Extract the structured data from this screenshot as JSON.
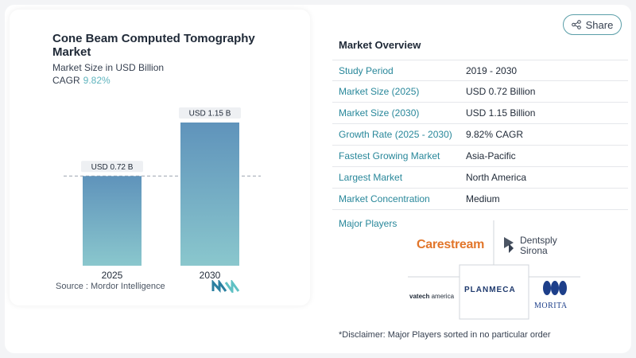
{
  "chart_title": "Cone Beam Computed Tomography Market",
  "chart_subtitle": "Market Size in USD Billion",
  "cagr_label": "CAGR",
  "cagr_value": "9.82%",
  "source": "Source :  Mordor Intelligence",
  "share_label": "Share",
  "colors": {
    "accent": "#28879a",
    "bar_top": "#5f93bb",
    "bar_bottom": "#8ac7cd",
    "cagr": "#5fb4be"
  },
  "chart_data": {
    "type": "bar",
    "categories": [
      "2025",
      "2030"
    ],
    "values": [
      0.72,
      1.15
    ],
    "data_labels": [
      "USD 0.72 B",
      "USD 1.15 B"
    ],
    "title": "Cone Beam Computed Tomography Market",
    "subtitle": "Market Size in USD Billion",
    "xlabel": "",
    "ylabel": "",
    "ylim": [
      0,
      1.15
    ],
    "reference_line_value": 0.72,
    "grid": false
  },
  "overview": {
    "title": "Market Overview",
    "rows": [
      {
        "label": "Study Period",
        "value": "2019 - 2030"
      },
      {
        "label": "Market Size (2025)",
        "value": "USD 0.72 Billion"
      },
      {
        "label": "Market Size (2030)",
        "value": "USD 1.15 Billion"
      },
      {
        "label": "Growth Rate (2025 - 2030)",
        "value": "9.82% CAGR"
      },
      {
        "label": "Fastest Growing Market",
        "value": "Asia-Pacific"
      },
      {
        "label": "Largest Market",
        "value": "North America"
      },
      {
        "label": "Market Concentration",
        "value": "Medium"
      }
    ]
  },
  "major_players": {
    "title": "Major Players",
    "carestream": "Carestream",
    "dentsply_line1": "Dentsply",
    "dentsply_line2": "Sirona",
    "vatech_bold": "vatech",
    "vatech_rest": " america",
    "planmeca": "PLANMECA",
    "morita": "MORITA"
  },
  "disclaimer": "*Disclaimer: Major Players sorted in no particular order"
}
